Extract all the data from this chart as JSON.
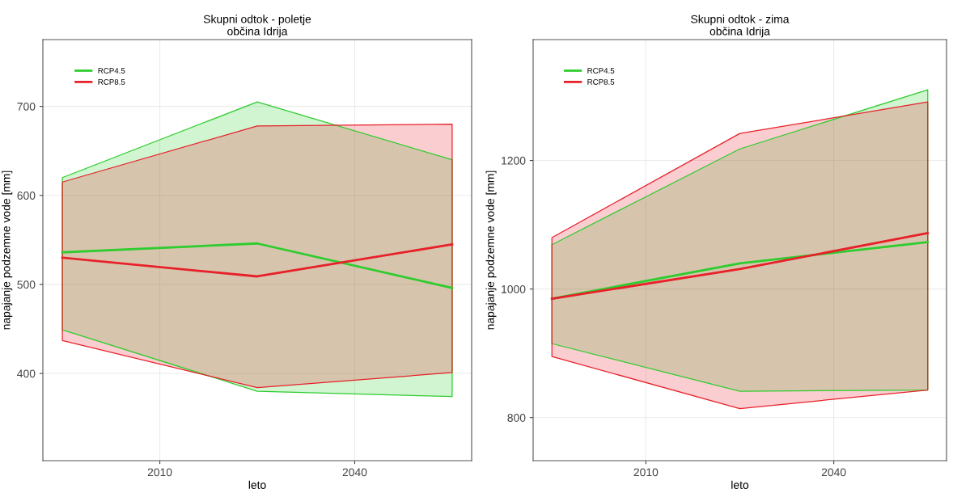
{
  "chart_data": [
    {
      "type": "line",
      "title": "Skupni odtok - poletje\nobčina Idrija",
      "xlabel": "leto",
      "ylabel": "napajanje podzemne vode [mm]",
      "x": [
        1995,
        2025,
        2055
      ],
      "xlim": [
        1992,
        2058
      ],
      "xticks": [
        2010,
        2040
      ],
      "ylim": [
        302,
        775
      ],
      "yticks": [
        400,
        500,
        600,
        700
      ],
      "grid": true,
      "legend": "top left",
      "series": [
        {
          "name": "RCP4.5",
          "color": "#2ecc2e",
          "values": [
            536,
            546,
            496
          ],
          "lower": [
            449,
            380,
            374
          ],
          "upper": [
            620,
            705,
            640
          ]
        },
        {
          "name": "RCP8.5",
          "color": "#e8202a",
          "values": [
            530,
            509,
            545
          ],
          "lower": [
            437,
            384,
            401
          ],
          "upper": [
            615,
            678,
            680
          ]
        }
      ]
    },
    {
      "type": "line",
      "title": "Skupni odtok - zima\nobčina Idrija",
      "xlabel": "leto",
      "ylabel": "napajanje podzemne vode [mm]",
      "x": [
        1995,
        2025,
        2055
      ],
      "xlim": [
        1992,
        2058
      ],
      "xticks": [
        2010,
        2040
      ],
      "ylim": [
        733,
        1388
      ],
      "yticks": [
        800,
        1000,
        1200
      ],
      "grid": true,
      "legend": "top left",
      "series": [
        {
          "name": "RCP4.5",
          "color": "#2ecc2e",
          "values": [
            985,
            1040,
            1073
          ],
          "lower": [
            915,
            841,
            843
          ],
          "upper": [
            1069,
            1218,
            1310
          ]
        },
        {
          "name": "RCP8.5",
          "color": "#e8202a",
          "values": [
            985,
            1031,
            1087
          ],
          "lower": [
            895,
            814,
            843
          ],
          "upper": [
            1080,
            1242,
            1291
          ]
        }
      ]
    }
  ]
}
